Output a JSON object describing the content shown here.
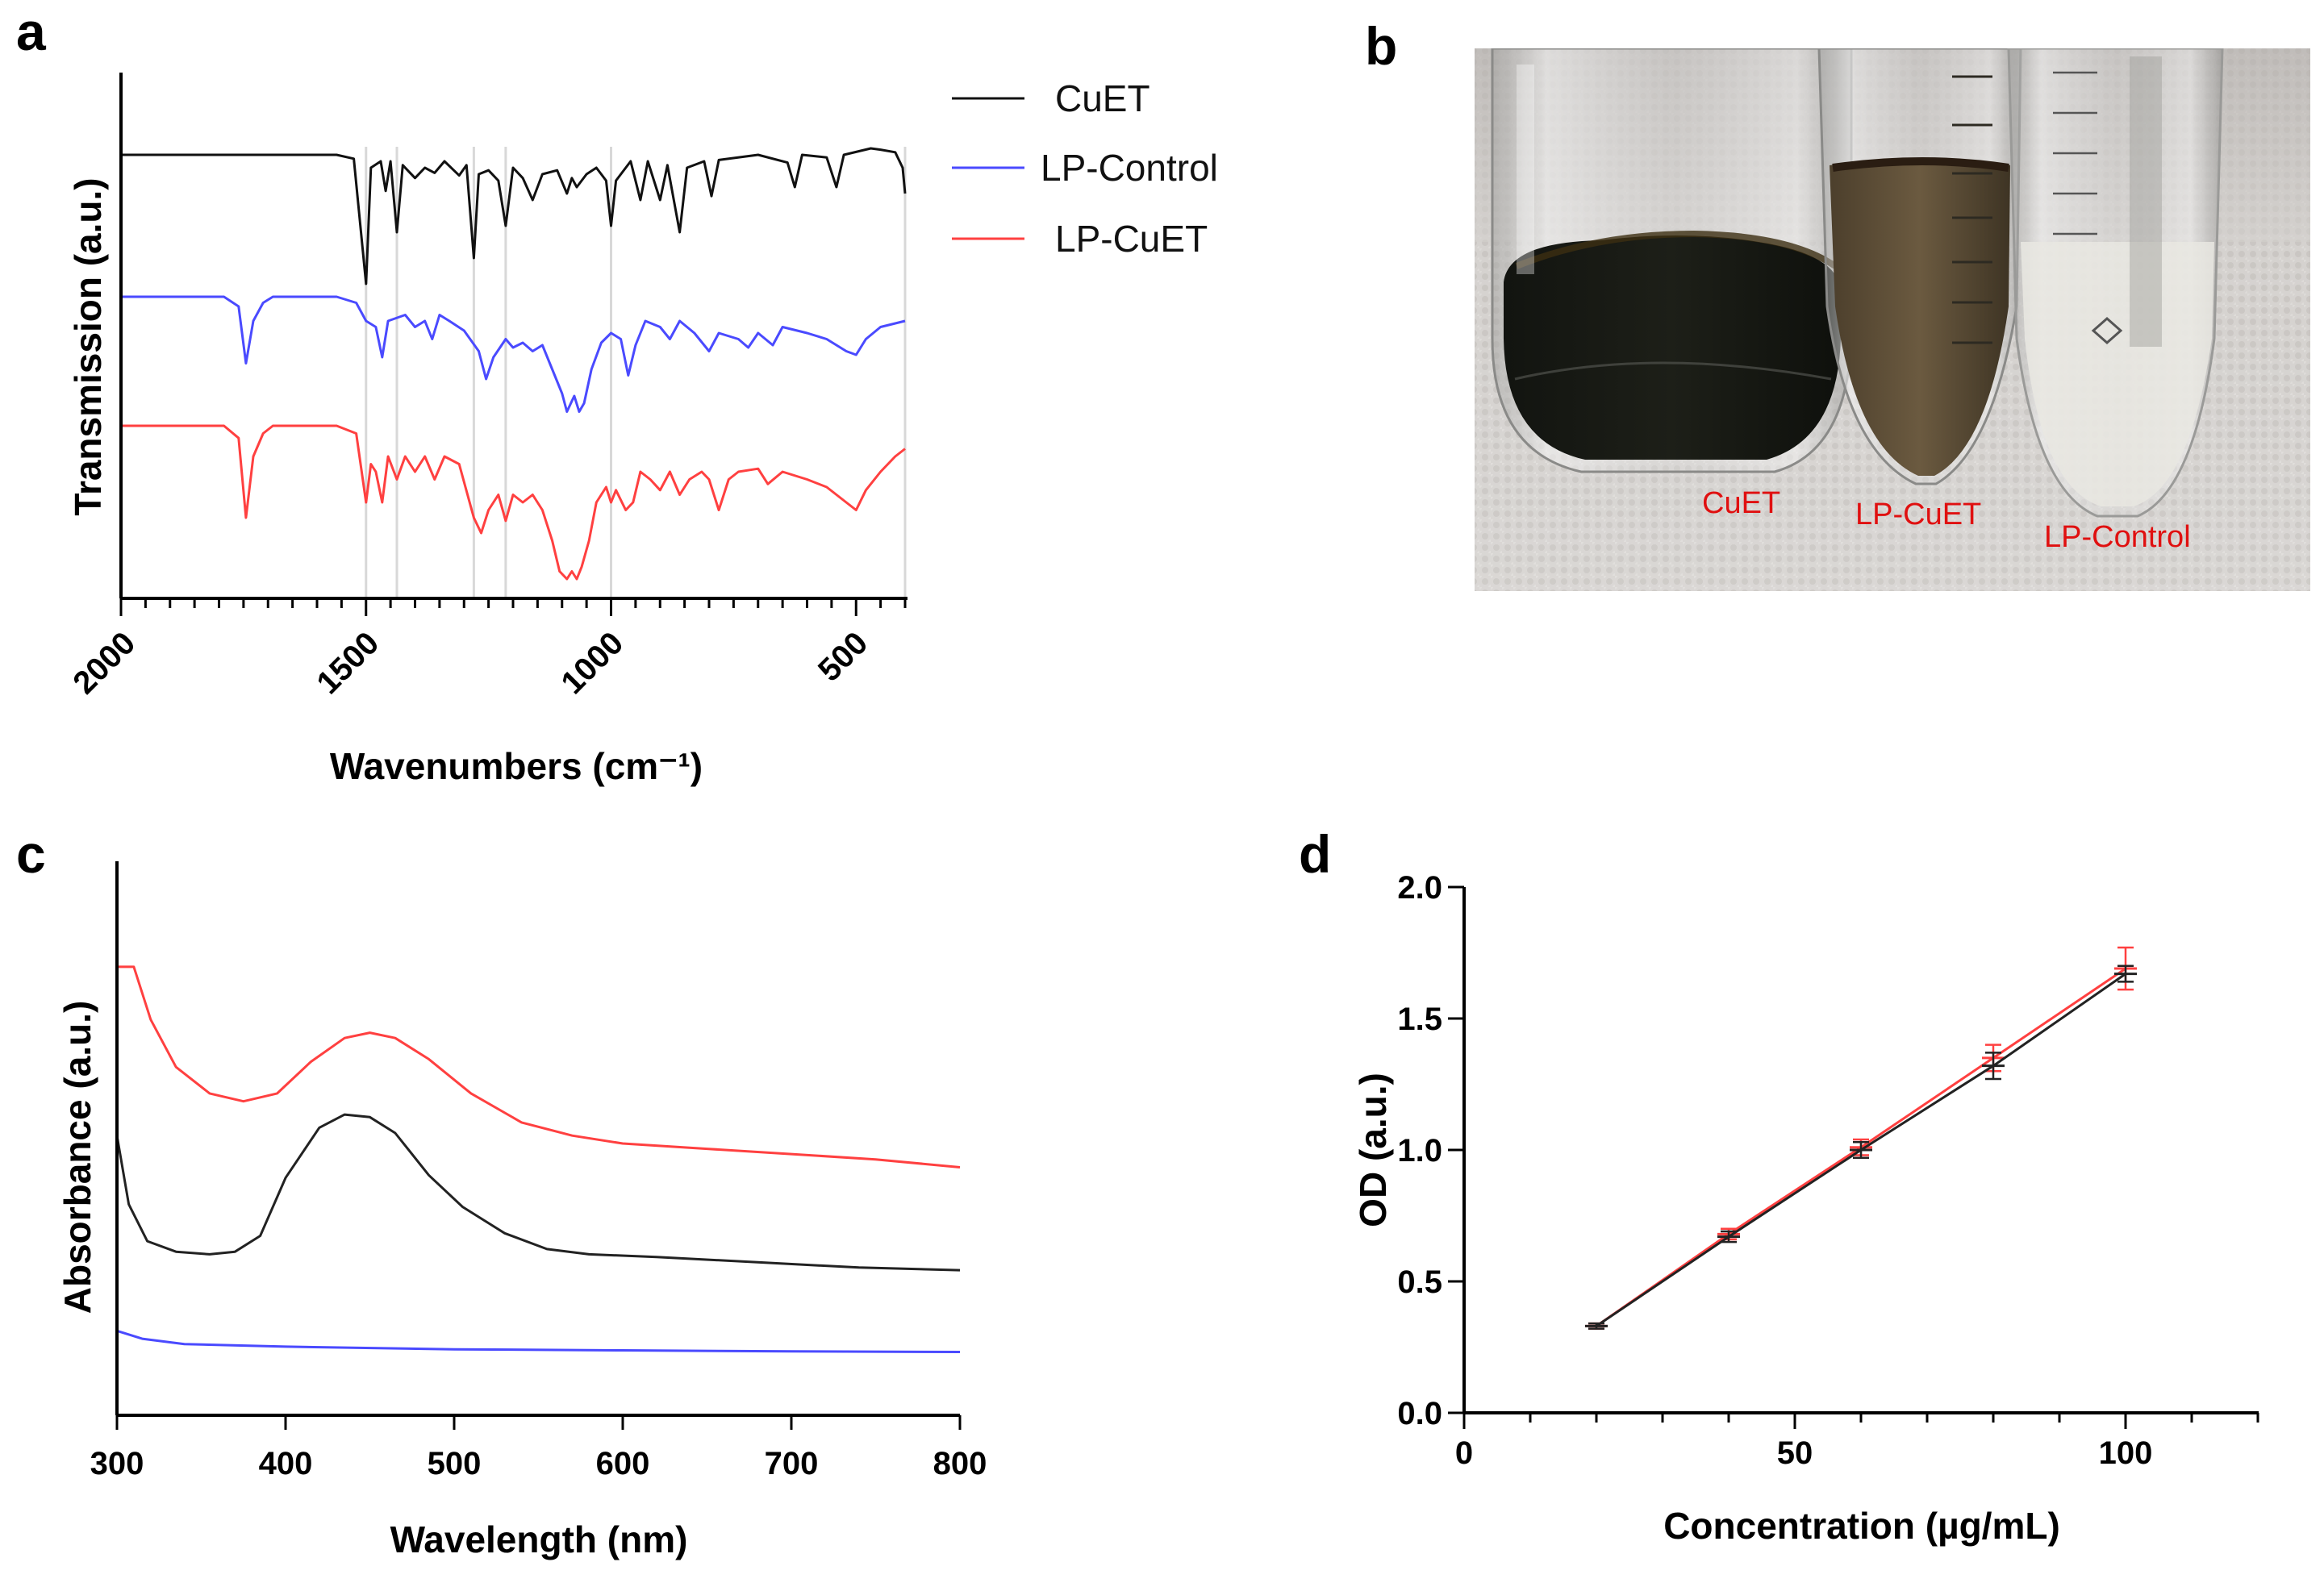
{
  "panels": {
    "a": "a",
    "b": "b",
    "c": "c",
    "d": "d"
  },
  "chart_data": [
    {
      "panel": "a",
      "type": "line",
      "title": "",
      "xlabel": "Wavenumbers (cm⁻¹)",
      "ylabel": "Transmission (a.u.)",
      "xlim": [
        2000,
        400
      ],
      "x_reversed": true,
      "tick_labels": [
        "2000",
        "1500",
        "1000",
        "500"
      ],
      "tick_values": [
        2000,
        1500,
        1000,
        500
      ],
      "reference_lines": [
        1500,
        1437,
        1280,
        1215,
        1000,
        400
      ],
      "legend": [
        "CuET",
        "LP-Control",
        "LP-CuET"
      ],
      "legend_position": "top-right-outside",
      "series": [
        {
          "name": "CuET",
          "color": "#111111",
          "baseline": 0.0,
          "points": [
            [
              2000,
              0
            ],
            [
              1560,
              0
            ],
            [
              1525,
              -0.03
            ],
            [
              1500,
              -1.0
            ],
            [
              1490,
              -0.1
            ],
            [
              1470,
              -0.05
            ],
            [
              1460,
              -0.28
            ],
            [
              1450,
              -0.05
            ],
            [
              1437,
              -0.6
            ],
            [
              1425,
              -0.08
            ],
            [
              1400,
              -0.18
            ],
            [
              1380,
              -0.1
            ],
            [
              1360,
              -0.14
            ],
            [
              1340,
              -0.05
            ],
            [
              1310,
              -0.16
            ],
            [
              1295,
              -0.08
            ],
            [
              1280,
              -0.8
            ],
            [
              1270,
              -0.15
            ],
            [
              1250,
              -0.12
            ],
            [
              1230,
              -0.2
            ],
            [
              1215,
              -0.55
            ],
            [
              1200,
              -0.1
            ],
            [
              1180,
              -0.18
            ],
            [
              1160,
              -0.35
            ],
            [
              1140,
              -0.15
            ],
            [
              1110,
              -0.12
            ],
            [
              1090,
              -0.3
            ],
            [
              1080,
              -0.18
            ],
            [
              1070,
              -0.25
            ],
            [
              1050,
              -0.15
            ],
            [
              1030,
              -0.1
            ],
            [
              1010,
              -0.2
            ],
            [
              1000,
              -0.55
            ],
            [
              990,
              -0.2
            ],
            [
              960,
              -0.05
            ],
            [
              940,
              -0.35
            ],
            [
              925,
              -0.05
            ],
            [
              900,
              -0.35
            ],
            [
              885,
              -0.08
            ],
            [
              860,
              -0.6
            ],
            [
              845,
              -0.1
            ],
            [
              810,
              -0.05
            ],
            [
              795,
              -0.32
            ],
            [
              780,
              -0.04
            ],
            [
              700,
              0
            ],
            [
              640,
              -0.06
            ],
            [
              625,
              -0.25
            ],
            [
              610,
              0
            ],
            [
              560,
              -0.02
            ],
            [
              540,
              -0.25
            ],
            [
              525,
              0
            ],
            [
              470,
              0.05
            ],
            [
              450,
              0.04
            ],
            [
              420,
              0.02
            ],
            [
              405,
              -0.1
            ],
            [
              400,
              -0.3
            ]
          ]
        },
        {
          "name": "LP-Control",
          "color": "#4a4aff",
          "baseline": 0.0,
          "points": [
            [
              2000,
              0
            ],
            [
              1790,
              0
            ],
            [
              1760,
              -0.08
            ],
            [
              1745,
              -0.55
            ],
            [
              1730,
              -0.2
            ],
            [
              1710,
              -0.05
            ],
            [
              1690,
              0
            ],
            [
              1560,
              0
            ],
            [
              1520,
              -0.05
            ],
            [
              1500,
              -0.2
            ],
            [
              1480,
              -0.25
            ],
            [
              1467,
              -0.5
            ],
            [
              1455,
              -0.2
            ],
            [
              1420,
              -0.15
            ],
            [
              1400,
              -0.25
            ],
            [
              1380,
              -0.2
            ],
            [
              1365,
              -0.35
            ],
            [
              1350,
              -0.15
            ],
            [
              1330,
              -0.2
            ],
            [
              1300,
              -0.28
            ],
            [
              1270,
              -0.45
            ],
            [
              1255,
              -0.68
            ],
            [
              1240,
              -0.5
            ],
            [
              1215,
              -0.35
            ],
            [
              1200,
              -0.42
            ],
            [
              1180,
              -0.38
            ],
            [
              1160,
              -0.45
            ],
            [
              1140,
              -0.4
            ],
            [
              1120,
              -0.6
            ],
            [
              1100,
              -0.8
            ],
            [
              1090,
              -0.95
            ],
            [
              1075,
              -0.82
            ],
            [
              1065,
              -0.95
            ],
            [
              1055,
              -0.88
            ],
            [
              1040,
              -0.6
            ],
            [
              1020,
              -0.38
            ],
            [
              1000,
              -0.3
            ],
            [
              980,
              -0.35
            ],
            [
              965,
              -0.65
            ],
            [
              950,
              -0.4
            ],
            [
              930,
              -0.2
            ],
            [
              900,
              -0.25
            ],
            [
              880,
              -0.35
            ],
            [
              860,
              -0.2
            ],
            [
              830,
              -0.3
            ],
            [
              800,
              -0.45
            ],
            [
              780,
              -0.3
            ],
            [
              740,
              -0.35
            ],
            [
              720,
              -0.42
            ],
            [
              700,
              -0.3
            ],
            [
              670,
              -0.4
            ],
            [
              650,
              -0.25
            ],
            [
              600,
              -0.3
            ],
            [
              560,
              -0.35
            ],
            [
              520,
              -0.45
            ],
            [
              500,
              -0.48
            ],
            [
              480,
              -0.35
            ],
            [
              450,
              -0.25
            ],
            [
              400,
              -0.2
            ]
          ]
        },
        {
          "name": "LP-CuET",
          "color": "#ff4040",
          "baseline": 0.0,
          "points": [
            [
              2000,
              0
            ],
            [
              1790,
              0
            ],
            [
              1760,
              -0.08
            ],
            [
              1745,
              -0.6
            ],
            [
              1730,
              -0.2
            ],
            [
              1710,
              -0.05
            ],
            [
              1690,
              0
            ],
            [
              1560,
              0
            ],
            [
              1520,
              -0.05
            ],
            [
              1500,
              -0.5
            ],
            [
              1490,
              -0.25
            ],
            [
              1480,
              -0.3
            ],
            [
              1467,
              -0.5
            ],
            [
              1455,
              -0.2
            ],
            [
              1437,
              -0.35
            ],
            [
              1420,
              -0.2
            ],
            [
              1400,
              -0.3
            ],
            [
              1380,
              -0.2
            ],
            [
              1360,
              -0.35
            ],
            [
              1340,
              -0.2
            ],
            [
              1310,
              -0.25
            ],
            [
              1280,
              -0.6
            ],
            [
              1265,
              -0.7
            ],
            [
              1250,
              -0.55
            ],
            [
              1230,
              -0.45
            ],
            [
              1215,
              -0.62
            ],
            [
              1200,
              -0.45
            ],
            [
              1180,
              -0.5
            ],
            [
              1160,
              -0.45
            ],
            [
              1140,
              -0.55
            ],
            [
              1120,
              -0.75
            ],
            [
              1105,
              -0.95
            ],
            [
              1090,
              -1.0
            ],
            [
              1080,
              -0.95
            ],
            [
              1070,
              -1.0
            ],
            [
              1060,
              -0.92
            ],
            [
              1045,
              -0.75
            ],
            [
              1030,
              -0.5
            ],
            [
              1010,
              -0.4
            ],
            [
              1000,
              -0.5
            ],
            [
              990,
              -0.42
            ],
            [
              970,
              -0.55
            ],
            [
              955,
              -0.5
            ],
            [
              940,
              -0.3
            ],
            [
              920,
              -0.35
            ],
            [
              900,
              -0.42
            ],
            [
              880,
              -0.3
            ],
            [
              860,
              -0.45
            ],
            [
              840,
              -0.35
            ],
            [
              815,
              -0.3
            ],
            [
              800,
              -0.35
            ],
            [
              780,
              -0.55
            ],
            [
              760,
              -0.35
            ],
            [
              740,
              -0.3
            ],
            [
              700,
              -0.28
            ],
            [
              680,
              -0.38
            ],
            [
              650,
              -0.3
            ],
            [
              600,
              -0.35
            ],
            [
              560,
              -0.4
            ],
            [
              520,
              -0.5
            ],
            [
              500,
              -0.55
            ],
            [
              480,
              -0.42
            ],
            [
              450,
              -0.3
            ],
            [
              420,
              -0.2
            ],
            [
              400,
              -0.15
            ]
          ]
        }
      ]
    },
    {
      "panel": "c",
      "type": "line",
      "title": "",
      "xlabel": "Wavelength (nm)",
      "ylabel": "Absorbance (a.u.)",
      "xlim": [
        300,
        800
      ],
      "tick_labels": [
        "300",
        "400",
        "500",
        "600",
        "700",
        "800"
      ],
      "tick_values": [
        300,
        400,
        500,
        600,
        700,
        800
      ],
      "ylim": [
        0,
        1.05
      ],
      "y_ticks_shown": false,
      "series": [
        {
          "name": "LP-CuET",
          "color": "#ff4040",
          "points": [
            [
              300,
              0.85
            ],
            [
              310,
              0.85
            ],
            [
              320,
              0.75
            ],
            [
              335,
              0.66
            ],
            [
              355,
              0.61
            ],
            [
              375,
              0.595
            ],
            [
              395,
              0.61
            ],
            [
              415,
              0.67
            ],
            [
              435,
              0.715
            ],
            [
              450,
              0.725
            ],
            [
              465,
              0.715
            ],
            [
              485,
              0.675
            ],
            [
              510,
              0.61
            ],
            [
              540,
              0.555
            ],
            [
              570,
              0.53
            ],
            [
              600,
              0.515
            ],
            [
              650,
              0.505
            ],
            [
              700,
              0.495
            ],
            [
              750,
              0.485
            ],
            [
              800,
              0.47
            ]
          ]
        },
        {
          "name": "CuET",
          "color": "#222222",
          "points": [
            [
              300,
              0.53
            ],
            [
              307,
              0.4
            ],
            [
              318,
              0.33
            ],
            [
              335,
              0.31
            ],
            [
              355,
              0.305
            ],
            [
              370,
              0.31
            ],
            [
              385,
              0.34
            ],
            [
              400,
              0.45
            ],
            [
              420,
              0.545
            ],
            [
              435,
              0.57
            ],
            [
              450,
              0.565
            ],
            [
              465,
              0.535
            ],
            [
              485,
              0.455
            ],
            [
              505,
              0.395
            ],
            [
              530,
              0.345
            ],
            [
              555,
              0.315
            ],
            [
              580,
              0.305
            ],
            [
              620,
              0.3
            ],
            [
              680,
              0.29
            ],
            [
              740,
              0.28
            ],
            [
              800,
              0.275
            ]
          ]
        },
        {
          "name": "LP-Control",
          "color": "#4a4aff",
          "points": [
            [
              300,
              0.16
            ],
            [
              315,
              0.145
            ],
            [
              340,
              0.135
            ],
            [
              400,
              0.13
            ],
            [
              500,
              0.125
            ],
            [
              600,
              0.123
            ],
            [
              700,
              0.121
            ],
            [
              800,
              0.12
            ]
          ]
        }
      ]
    },
    {
      "panel": "d",
      "type": "line",
      "title": "",
      "xlabel": "Concentration (µg/mL)",
      "ylabel": "OD (a.u.)",
      "xlim": [
        0,
        120
      ],
      "ylim": [
        0,
        2.0
      ],
      "x_tick_labels": [
        "0",
        "50",
        "100"
      ],
      "x_tick_values": [
        0,
        50,
        100
      ],
      "y_tick_labels": [
        "0.0",
        "0.5",
        "1.0",
        "1.5",
        "2.0"
      ],
      "y_tick_values": [
        0,
        0.5,
        1.0,
        1.5,
        2.0
      ],
      "series": [
        {
          "name": "black",
          "color": "#222222",
          "x": [
            20,
            40,
            60,
            80,
            100
          ],
          "y": [
            0.33,
            0.67,
            1.0,
            1.32,
            1.67
          ],
          "err": [
            0.01,
            0.02,
            0.03,
            0.05,
            0.03
          ]
        },
        {
          "name": "red",
          "color": "#ff4040",
          "x": [
            20,
            40,
            60,
            80,
            100
          ],
          "y": [
            0.33,
            0.68,
            1.01,
            1.35,
            1.69
          ],
          "err": [
            0.01,
            0.02,
            0.03,
            0.05,
            0.08
          ]
        }
      ]
    }
  ],
  "photo": {
    "labels": [
      "CuET",
      "LP-CuET",
      "LP-Control"
    ]
  }
}
